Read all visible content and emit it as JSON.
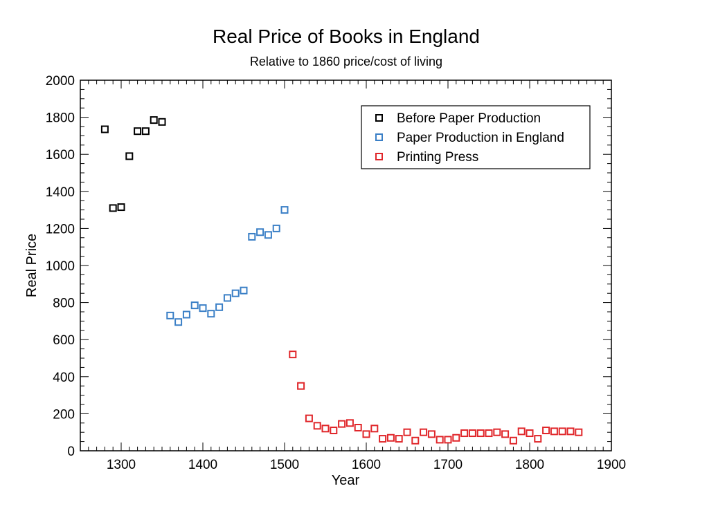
{
  "chart_data": {
    "type": "scatter",
    "title": "Real Price of Books in England",
    "subtitle": "Relative to 1860 price/cost of living",
    "xlabel": "Year",
    "ylabel": "Real Price",
    "xlim": [
      1250,
      1900
    ],
    "ylim": [
      0,
      2000
    ],
    "xticks": [
      1300,
      1400,
      1500,
      1600,
      1700,
      1800,
      1900
    ],
    "yticks": [
      0,
      200,
      400,
      600,
      800,
      1000,
      1200,
      1400,
      1600,
      1800,
      2000
    ],
    "grid": false,
    "legend_position": "top-right",
    "marker": "open-square",
    "series": [
      {
        "name": "Before Paper Production",
        "color": "#000000",
        "x": [
          1280,
          1290,
          1300,
          1310,
          1320,
          1330,
          1340,
          1350
        ],
        "y": [
          1735,
          1310,
          1315,
          1590,
          1725,
          1725,
          1785,
          1775
        ]
      },
      {
        "name": "Paper Production in England",
        "color": "#3a7fc6",
        "x": [
          1360,
          1370,
          1380,
          1390,
          1400,
          1410,
          1420,
          1430,
          1440,
          1450,
          1460,
          1470,
          1480,
          1490,
          1500
        ],
        "y": [
          730,
          695,
          735,
          785,
          770,
          740,
          775,
          825,
          850,
          865,
          1155,
          1180,
          1165,
          1200,
          1300
        ]
      },
      {
        "name": "Printing Press",
        "color": "#e0262a",
        "x": [
          1510,
          1520,
          1530,
          1540,
          1550,
          1560,
          1570,
          1580,
          1590,
          1600,
          1610,
          1620,
          1630,
          1640,
          1650,
          1660,
          1670,
          1680,
          1690,
          1700,
          1710,
          1720,
          1730,
          1740,
          1750,
          1760,
          1770,
          1780,
          1790,
          1800,
          1810,
          1820,
          1830,
          1840,
          1850,
          1860
        ],
        "y": [
          520,
          350,
          175,
          135,
          120,
          110,
          145,
          150,
          125,
          90,
          120,
          65,
          70,
          65,
          100,
          55,
          100,
          90,
          60,
          60,
          70,
          95,
          95,
          95,
          95,
          100,
          90,
          55,
          105,
          95,
          65,
          110,
          105,
          105,
          105,
          100
        ]
      }
    ]
  }
}
